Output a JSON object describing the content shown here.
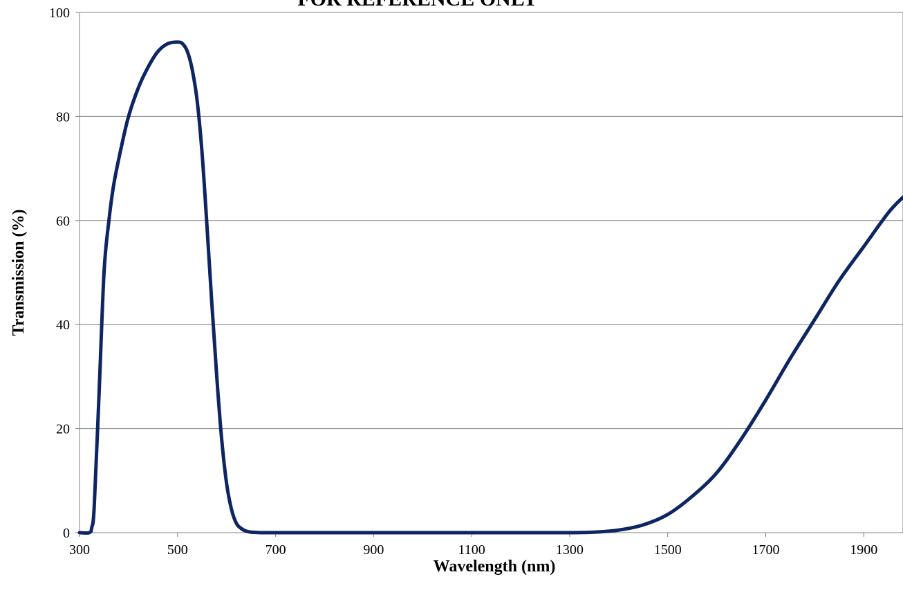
{
  "chart_data": {
    "type": "line",
    "title": "FOR REFERENCE ONLY",
    "xlabel": "Wavelength (nm)",
    "ylabel": "Transmission (%)",
    "xlim": [
      300,
      1980
    ],
    "ylim": [
      0,
      100
    ],
    "xticks": [
      300,
      500,
      700,
      900,
      1100,
      1300,
      1500,
      1700,
      1900
    ],
    "yticks": [
      0,
      20,
      40,
      60,
      80,
      100
    ],
    "grid": "horizontal",
    "line_color": "#0d2563",
    "series": [
      {
        "x": [
          300,
          320,
          325,
          330,
          340,
          350,
          360,
          370,
          385,
          400,
          420,
          440,
          460,
          480,
          500,
          510,
          520,
          530,
          540,
          550,
          560,
          570,
          580,
          590,
          600,
          610,
          620,
          630,
          640,
          650,
          660,
          670,
          680,
          700,
          800,
          900,
          1000,
          1100,
          1200,
          1300,
          1350,
          1400,
          1450,
          1500,
          1550,
          1600,
          1650,
          1700,
          1750,
          1800,
          1850,
          1900,
          1950,
          1980
        ],
        "y": [
          0,
          0,
          1,
          5,
          27,
          50,
          60,
          67,
          74,
          80,
          85.5,
          89.5,
          92.5,
          94,
          94.3,
          94,
          92.5,
          89,
          83,
          73,
          59,
          44,
          30,
          18,
          9.5,
          4.5,
          1.8,
          0.8,
          0.3,
          0.1,
          0.05,
          0,
          0,
          0,
          0,
          0,
          0,
          0,
          0,
          0,
          0.1,
          0.5,
          1.5,
          3.5,
          7,
          11.5,
          18,
          25.5,
          33.5,
          41,
          48.5,
          55,
          61.5,
          64.5
        ]
      }
    ]
  }
}
